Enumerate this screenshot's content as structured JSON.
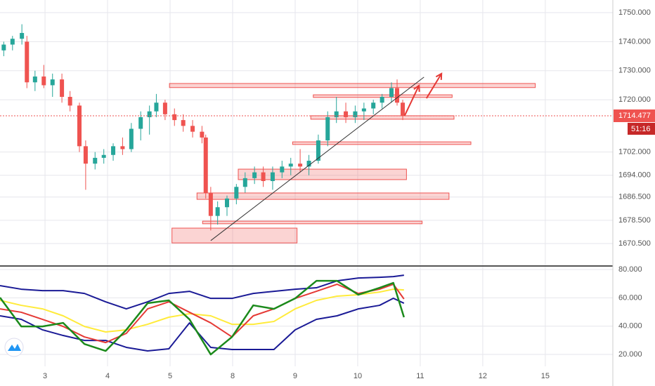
{
  "chart_data": [
    {
      "type": "candlestick",
      "x": [
        -0.66,
        -0.52,
        -0.37,
        -0.29,
        -0.16,
        -0.02,
        0.12,
        0.27,
        0.4,
        0.55,
        0.65,
        0.8,
        0.94,
        1.09,
        1.24,
        1.38,
        1.53,
        1.67,
        1.78,
        1.92,
        2.07,
        2.21,
        2.36,
        2.51,
        2.57,
        2.65,
        2.76,
        2.91,
        3.06,
        3.2,
        3.35,
        3.49,
        3.64,
        3.79,
        3.93,
        4.08,
        4.22,
        4.37,
        4.52,
        4.66,
        4.81,
        4.96,
        5.1,
        5.25,
        5.39,
        5.54,
        5.63,
        5.72
      ],
      "open": [
        1737,
        1739,
        1741,
        1740,
        1726,
        1728,
        1725,
        1727,
        1721,
        1718,
        1704,
        1698,
        1700,
        1701,
        1704,
        1703,
        1710,
        1714,
        1716,
        1719,
        1715,
        1713,
        1711,
        1709,
        1707,
        1688,
        1680,
        1683,
        1686,
        1690,
        1693,
        1695,
        1692,
        1695,
        1697,
        1698,
        1697,
        1699,
        1706,
        1714,
        1716,
        1714,
        1716,
        1717,
        1719,
        1721,
        1724,
        1719
      ],
      "high": [
        1740,
        1742,
        1746,
        1742,
        1730,
        1732,
        1729,
        1729,
        1723,
        1719,
        1706,
        1702,
        1703,
        1705,
        1707,
        1712,
        1716,
        1718,
        1722,
        1720,
        1717,
        1715,
        1713,
        1711,
        1708,
        1690,
        1685,
        1687,
        1691,
        1695,
        1697,
        1697,
        1697,
        1699,
        1700,
        1703,
        1701,
        1708,
        1716,
        1721,
        1719,
        1718,
        1719,
        1720,
        1722,
        1726,
        1727,
        1720
      ],
      "low": [
        1735,
        1737,
        1739,
        1724,
        1723,
        1724,
        1721,
        1719,
        1716,
        1702,
        1689,
        1696,
        1698,
        1699,
        1701,
        1702,
        1706,
        1708,
        1714,
        1713,
        1711,
        1709,
        1707,
        1705,
        1686,
        1675,
        1677,
        1680,
        1684,
        1688,
        1691,
        1690,
        1689,
        1693,
        1694,
        1695,
        1694,
        1698,
        1704,
        1712,
        1712,
        1712,
        1713,
        1715,
        1717,
        1719,
        1718,
        1713
      ],
      "close": [
        1739,
        1741,
        1743,
        1726,
        1728,
        1725,
        1727,
        1721,
        1718,
        1704,
        1698,
        1700,
        1701,
        1704,
        1703,
        1710,
        1714,
        1716,
        1719,
        1715,
        1713,
        1711,
        1709,
        1707,
        1688,
        1680,
        1683,
        1686,
        1690,
        1693,
        1695,
        1692,
        1695,
        1697,
        1698,
        1697,
        1699,
        1706,
        1714,
        1716,
        1714,
        1716,
        1717,
        1719,
        1721,
        1724,
        1719,
        1714.477
      ],
      "up_color": "#26a69a",
      "down_color": "#ef5350",
      "xlim": [
        -0.72,
        9.08
      ],
      "ylim": [
        1663,
        1754.35
      ],
      "xticks": [
        {
          "value": 0,
          "label": "3"
        },
        {
          "value": 1,
          "label": "4"
        },
        {
          "value": 2,
          "label": "5"
        },
        {
          "value": 3,
          "label": "8"
        },
        {
          "value": 4,
          "label": "9"
        },
        {
          "value": 5,
          "label": "10"
        },
        {
          "value": 6,
          "label": "11"
        },
        {
          "value": 7,
          "label": "12"
        },
        {
          "value": 8,
          "label": "15"
        }
      ],
      "yticks": [
        {
          "value": 1750,
          "label": "1750.000"
        },
        {
          "value": 1740,
          "label": "1740.000"
        },
        {
          "value": 1730,
          "label": "1730.000"
        },
        {
          "value": 1720,
          "label": "1720.000"
        },
        {
          "value": 1702,
          "label": "1702.000"
        },
        {
          "value": 1694,
          "label": "1694.000"
        },
        {
          "value": 1686.5,
          "label": "1686.500"
        },
        {
          "value": 1678.5,
          "label": "1678.500"
        },
        {
          "value": 1670.5,
          "label": "1670.500"
        }
      ],
      "countdown": "51:16",
      "zones": [
        {
          "x": [
            1.99,
            7.84
          ],
          "y": [
            1724.2,
            1725.6
          ]
        },
        {
          "x": [
            4.29,
            6.51
          ],
          "y": [
            1720.8,
            1721.7
          ]
        },
        {
          "x": [
            4.25,
            6.54
          ],
          "y": [
            1713.3,
            1714.5
          ]
        },
        {
          "x": [
            3.96,
            6.81
          ],
          "y": [
            1704.6,
            1705.5
          ]
        },
        {
          "x": [
            3.09,
            5.78
          ],
          "y": [
            1692.5,
            1696.1
          ]
        },
        {
          "x": [
            2.43,
            6.46
          ],
          "y": [
            1685.7,
            1687.9
          ]
        },
        {
          "x": [
            2.52,
            6.03
          ],
          "y": [
            1677.3,
            1678.2
          ]
        },
        {
          "x": [
            2.03,
            4.03
          ],
          "y": [
            1670.7,
            1675.8
          ]
        }
      ],
      "trendline": {
        "x": [
          2.65,
          6.06
        ],
        "y": [
          1671.5,
          1727.8
        ]
      },
      "arrows": [
        {
          "x": [
            5.75,
            5.98
          ],
          "y": [
            1714.5,
            1724.9
          ]
        },
        {
          "x": [
            6.1,
            6.34
          ],
          "y": [
            1720.5,
            1729
          ]
        }
      ],
      "grid": true
    },
    {
      "type": "line",
      "x": [
        -0.72,
        -0.38,
        -0.04,
        0.29,
        0.63,
        0.97,
        1.3,
        1.64,
        1.98,
        2.31,
        2.65,
        2.99,
        3.33,
        3.66,
        4,
        4.34,
        4.67,
        5.01,
        5.35,
        5.57,
        5.74
      ],
      "series": [
        {
          "color": "#1a1a96",
          "values": [
            68.6,
            66.1,
            65.1,
            65.1,
            63.1,
            57.2,
            52.2,
            57.2,
            63.1,
            64.6,
            59.6,
            59.6,
            63.1,
            64.6,
            66.1,
            67.1,
            72.0,
            74.0,
            74.5,
            75.0,
            76.0
          ]
        },
        {
          "color": "#1a1a96",
          "values": [
            47.3,
            44.8,
            37.4,
            33.4,
            29.9,
            29.9,
            25.0,
            22.5,
            24.0,
            42.3,
            25.0,
            23.5,
            23.5,
            23.5,
            37.4,
            44.8,
            47.3,
            52.2,
            54.7,
            59.7,
            56.2
          ]
        },
        {
          "color": "#ffeb3b",
          "values": [
            58.2,
            54.7,
            52.2,
            47.3,
            39.8,
            35.9,
            37.4,
            41.3,
            46.3,
            48.8,
            47.3,
            41.3,
            41.3,
            43.3,
            52.2,
            58.2,
            61.2,
            62.2,
            64.1,
            66.1,
            65.6
          ]
        },
        {
          "color": "#e53935",
          "values": [
            52.2,
            49.8,
            44.8,
            39.8,
            32.4,
            28.4,
            34.9,
            52.2,
            57.2,
            49.8,
            42.3,
            32.4,
            47.3,
            52.2,
            59.6,
            64.6,
            69.6,
            63.1,
            66.1,
            69.6,
            59.2
          ]
        },
        {
          "color": "#1b8a1b",
          "values": [
            60.2,
            39.8,
            39.8,
            42.3,
            27.4,
            22.5,
            37.4,
            56.2,
            58.2,
            44.8,
            20.0,
            32.4,
            54.7,
            52.2,
            59.6,
            72.0,
            72.0,
            62.2,
            67.1,
            70.6,
            46.3
          ]
        }
      ],
      "xlim": [
        -0.72,
        9.08
      ],
      "ylim": [
        11.6,
        82
      ],
      "yticks": [
        {
          "value": 80,
          "label": "80.000"
        },
        {
          "value": 60,
          "label": "60.000"
        },
        {
          "value": 40,
          "label": "40.000"
        },
        {
          "value": 20,
          "label": "20.000"
        }
      ],
      "grid": true
    }
  ]
}
